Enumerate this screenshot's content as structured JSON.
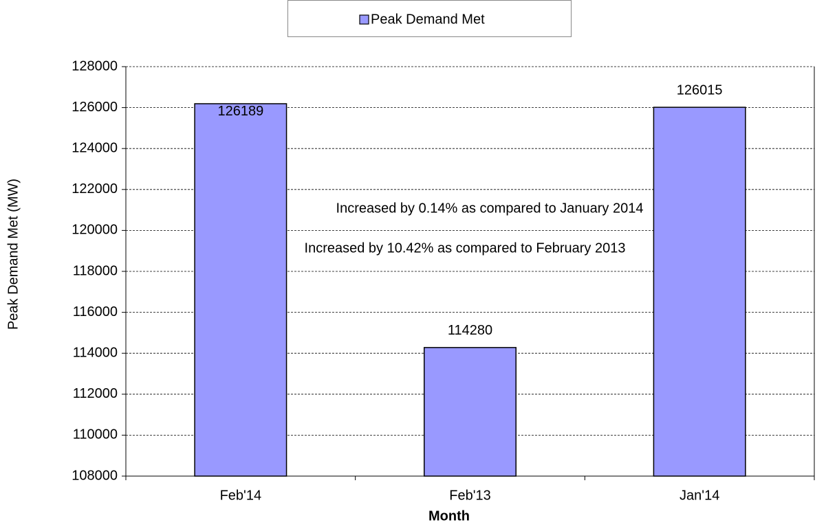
{
  "chart_data": {
    "type": "bar",
    "x_label": "Month",
    "y_label": "Peak Demand Met (MW)",
    "categories": [
      "Feb'14",
      "Feb'13",
      "Jan'14"
    ],
    "series": [
      {
        "name": "Peak Demand Met",
        "color": "#9999ff",
        "values": [
          126189,
          114280,
          126015
        ]
      }
    ],
    "ylim": [
      108000,
      128000
    ],
    "yticks": [
      108000,
      110000,
      112000,
      114000,
      116000,
      118000,
      120000,
      122000,
      124000,
      126000,
      128000
    ],
    "grid": true,
    "legend": "top",
    "annotations": [
      "Increased by 0.14% as compared to January 2014",
      "Increased by 10.42% as compared to February 2013"
    ]
  }
}
